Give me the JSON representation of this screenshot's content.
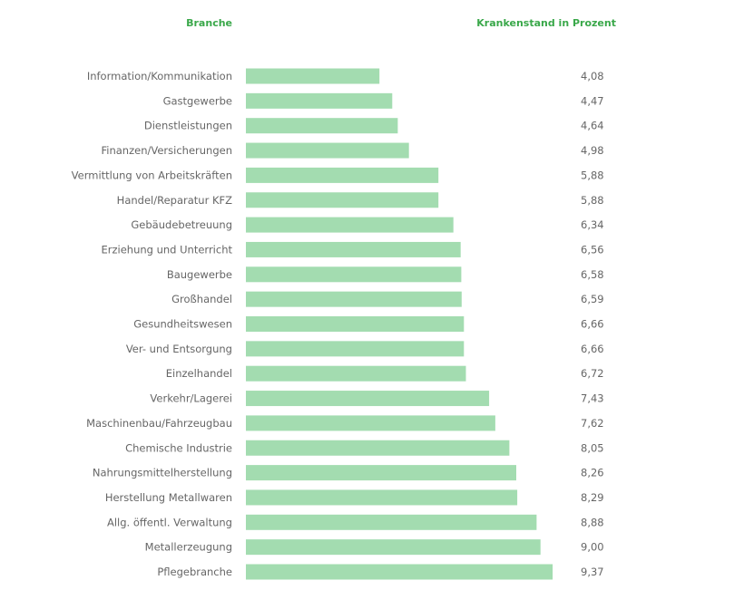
{
  "colors": {
    "accent": "#3aa84a",
    "bar": "#a3dcb0",
    "text": "#666666"
  },
  "header": {
    "category_heading": "Branche",
    "value_heading": "Krankenstand in Prozent"
  },
  "chart_data": {
    "type": "bar",
    "orientation": "horizontal",
    "title": "",
    "xlabel": "Krankenstand in Prozent",
    "ylabel": "Branche",
    "grid": false,
    "legend": "none",
    "xlim": [
      0,
      10
    ],
    "categories": [
      "Information/Kommunikation",
      "Gastgewerbe",
      "Dienstleistungen",
      "Finanzen/Versicherungen",
      "Vermittlung von Arbeitskräften",
      "Handel/Reparatur KFZ",
      "Gebäudebetreuung",
      "Erziehung und Unterricht",
      "Baugewerbe",
      "Großhandel",
      "Gesundheitswesen",
      "Ver- und Entsorgung",
      "Einzelhandel",
      "Verkehr/Lagerei",
      "Maschinenbau/Fahrzeugbau",
      "Chemische Industrie",
      "Nahrungsmittelherstellung",
      "Herstellung Metallwaren",
      "Allg. öffentl. Verwaltung",
      "Metallerzeugung",
      "Pflegebranche"
    ],
    "values": [
      4.08,
      4.47,
      4.64,
      4.98,
      5.88,
      5.88,
      6.34,
      6.56,
      6.58,
      6.59,
      6.66,
      6.66,
      6.72,
      7.43,
      7.62,
      8.05,
      8.26,
      8.29,
      8.88,
      9.0,
      9.37
    ],
    "value_labels": [
      "4,08",
      "4,47",
      "4,64",
      "4,98",
      "5,88",
      "5,88",
      "6,34",
      "6,56",
      "6,58",
      "6,59",
      "6,66",
      "6,66",
      "6,72",
      "7,43",
      "7,62",
      "8,05",
      "8,26",
      "8,29",
      "8,88",
      "9,00",
      "9,37"
    ]
  }
}
